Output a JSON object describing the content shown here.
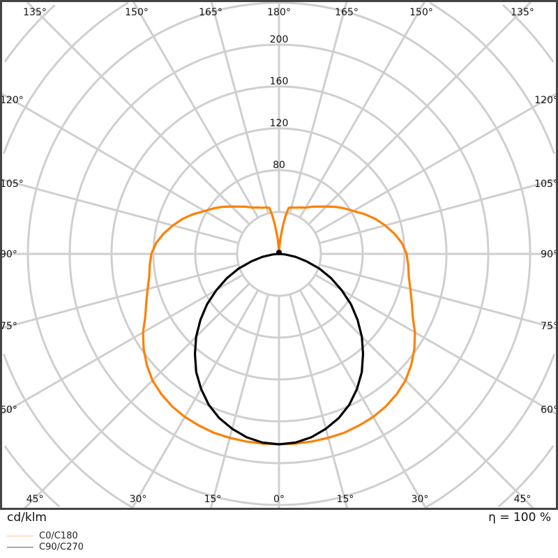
{
  "chart_data": {
    "type": "polar",
    "unit_label": "cd/klm",
    "efficiency_label": "η = 100 %",
    "radial_ticks": [
      40,
      80,
      120,
      160,
      200,
      240,
      280,
      320,
      360
    ],
    "radial_tick_labels": [
      "80",
      "120",
      "160",
      "200"
    ],
    "angle_step_deg": 15,
    "angle_labels": {
      "top": [
        "135°",
        "150°",
        "165°",
        "180°",
        "165°",
        "150°",
        "135°"
      ],
      "left": [
        "120°",
        "105°",
        "90°",
        "75°",
        "60°"
      ],
      "right": [
        "120°",
        "105°",
        "90°",
        "75°",
        "60°"
      ],
      "bottom": [
        "45°",
        "30°",
        "15°",
        "0°",
        "15°",
        "30°",
        "45°"
      ]
    },
    "grid": true,
    "legend_placement": "bottom-left",
    "series": [
      {
        "name": "C0/C180",
        "color": "#ff8000",
        "legend_color": "#ffc58a",
        "gamma": [
          0,
          5,
          10,
          15,
          20,
          25,
          30,
          35,
          40,
          45,
          50,
          55,
          60,
          65,
          70,
          75,
          80,
          85,
          90,
          95,
          100,
          105,
          110,
          115,
          120,
          125,
          130,
          135,
          140,
          145,
          150,
          155,
          160,
          165,
          168,
          170,
          172,
          175,
          178,
          180
        ],
        "values": [
          182,
          182,
          182,
          182,
          182,
          181,
          180,
          178,
          175,
          171,
          165,
          158,
          150,
          141,
          135,
          130,
          126,
          124,
          122,
          118,
          112,
          105,
          98,
          90,
          82,
          76,
          70,
          64,
          59,
          55,
          51,
          49,
          47,
          46,
          45,
          38,
          28,
          15,
          5,
          2
        ]
      },
      {
        "name": "C90/C270",
        "color": "#000000",
        "legend_color": "#666666",
        "gamma": [
          0,
          5,
          10,
          15,
          20,
          25,
          30,
          35,
          40,
          45,
          50,
          55,
          60,
          65,
          70,
          75,
          80,
          85,
          90
        ],
        "values": [
          182,
          181,
          178,
          173,
          167,
          159,
          149,
          138,
          125,
          112,
          98,
          84,
          69,
          55,
          41,
          27,
          16,
          6,
          0
        ]
      }
    ]
  }
}
